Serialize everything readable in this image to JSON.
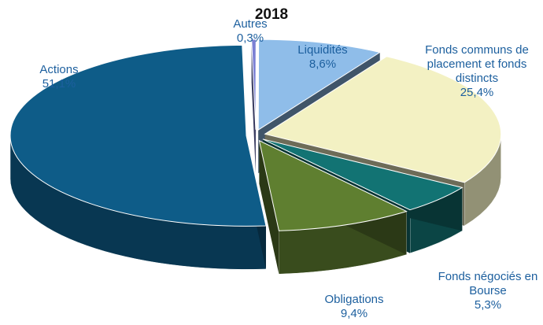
{
  "chart_data": {
    "type": "pie",
    "title": "2018",
    "categories": [
      "Autres",
      "Liquidités",
      "Fonds communs de placement et fonds distincts",
      "Fonds négociés en Bourse",
      "Obligations",
      "Actions"
    ],
    "values": [
      0.3,
      8.6,
      25.4,
      5.3,
      9.4,
      51.1
    ],
    "value_labels": [
      "0,3%",
      "8,6%",
      "25,4%",
      "5,3%",
      "9,4%",
      "51,1%"
    ],
    "colors": [
      "#7b80d4",
      "#8fbde9",
      "#f3f1c3",
      "#127373",
      "#5f7f30",
      "#0e5c88"
    ]
  }
}
